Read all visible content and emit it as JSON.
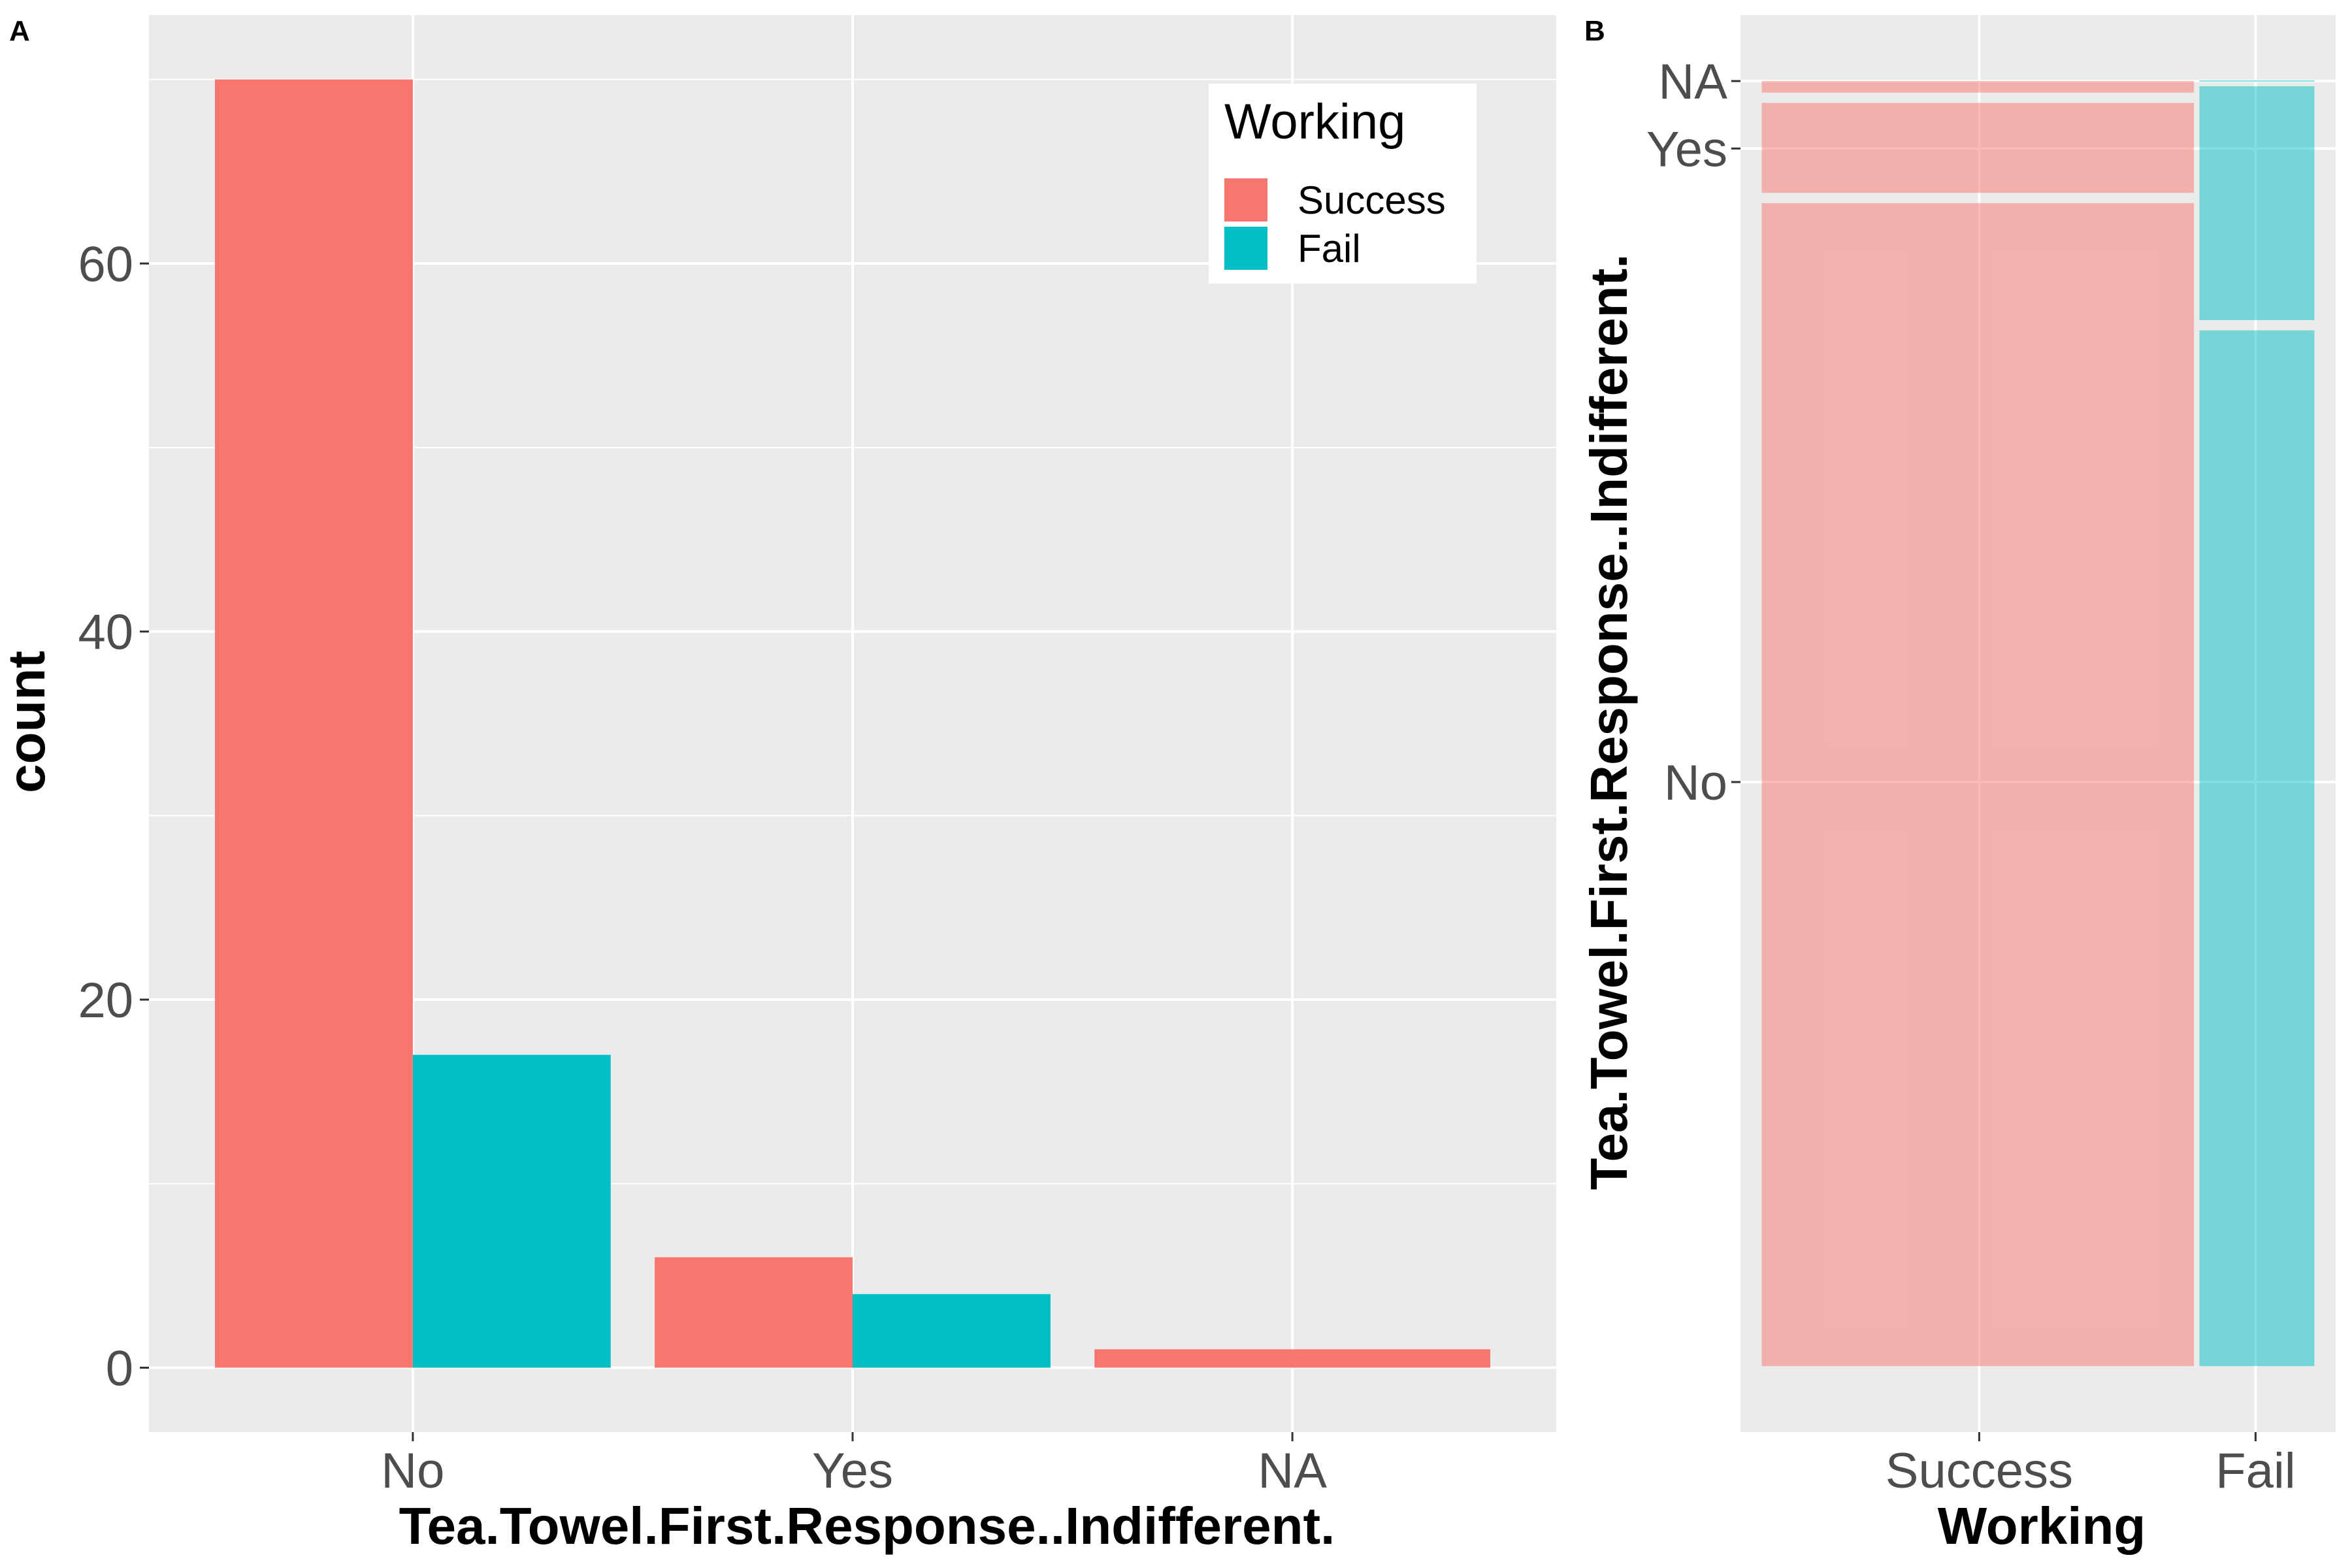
{
  "colors": {
    "success": "#F8766D",
    "fail": "#00BFC4",
    "panel_bg": "#EBEBEB",
    "grid": "#FFFFFF",
    "tick_text": "#4D4D4D"
  },
  "chart_data": [
    {
      "panel": "A",
      "type": "bar",
      "position": "dodge",
      "categories": [
        "No",
        "Yes",
        "NA"
      ],
      "series": [
        {
          "name": "Success",
          "values": [
            70,
            6,
            1
          ]
        },
        {
          "name": "Fail",
          "values": [
            17,
            4,
            0
          ]
        }
      ],
      "xlabel": "Tea.Towel.First.Response..Indifferent.",
      "ylabel": "count",
      "ylim": [
        -3.5,
        73.5
      ],
      "yticks": [
        0,
        20,
        40,
        60
      ],
      "grid": true,
      "legend": {
        "title": "Working",
        "position": "top-right",
        "entries": [
          "Success",
          "Fail"
        ]
      }
    },
    {
      "panel": "B",
      "type": "mosaic",
      "x_categories": [
        "Success",
        "Fail"
      ],
      "x_proportions": [
        0.787,
        0.213
      ],
      "y_categories": [
        "No",
        "Yes",
        "NA"
      ],
      "y_proportions": {
        "Success": [
          0.909,
          0.078,
          0.013
        ],
        "Fail": [
          0.81,
          0.19,
          0.0
        ]
      },
      "xlabel": "Working",
      "ylabel": "Tea.Towel.First.Response..Indifferent.",
      "yticks": [
        "No",
        "Yes",
        "NA"
      ],
      "ytick_positions": [
        0.4545,
        0.9475,
        1.0
      ],
      "grid": true
    }
  ]
}
